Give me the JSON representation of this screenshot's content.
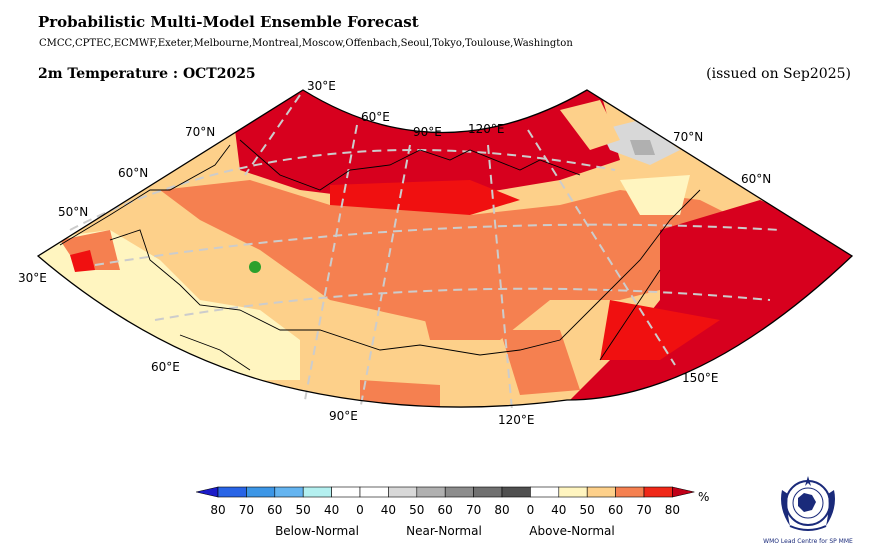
{
  "header": {
    "title": "Probabilistic Multi-Model Ensemble Forecast",
    "models": "CMCC,CPTEC,ECMWF,Exeter,Melbourne,Montreal,Moscow,Offenbach,Seoul,Tokyo,Toulouse,Washington",
    "variable": "2m Temperature : OCT2025",
    "issued": "(issued on Sep2025)"
  },
  "map": {
    "region": "Northern Asia",
    "projection": "conic",
    "labels": {
      "lon_30": "30°E",
      "lon_60_top": "60°E",
      "lon_90_top": "90°E",
      "lon_120_top": "120°E",
      "lat_70_left": "70°N",
      "lat_60_left": "60°N",
      "lat_50_left": "50°N",
      "lat_30_left": "30°E",
      "lat_70_right": "70°N",
      "lat_60_right": "60°N",
      "lon_60_bottom": "60°E",
      "lon_90_bottom": "90°E",
      "lon_120_bottom": "120°E",
      "lon_150_bottom": "150°E"
    }
  },
  "legend": {
    "ticks": [
      "80",
      "70",
      "60",
      "50",
      "40",
      "0",
      "40",
      "50",
      "60",
      "70",
      "80",
      "0",
      "40",
      "50",
      "60",
      "70",
      "80"
    ],
    "categories": {
      "below": "Below-Normal",
      "near": "Near-Normal",
      "above": "Above-Normal"
    },
    "unit": "%",
    "colors": {
      "below": [
        "#1b1bc8",
        "#2864e6",
        "#3c96e6",
        "#64b4f0",
        "#b4f0f0"
      ],
      "near": [
        "#ffffff",
        "#ffffff",
        "#d8d8d8",
        "#b0b0b0",
        "#8c8c8c",
        "#707070",
        "#505050"
      ],
      "above": [
        "#ffffff",
        "#fff5c0",
        "#fdd08a",
        "#f58050",
        "#f02818",
        "#c00018"
      ]
    }
  },
  "logo": {
    "text": "WMO Lead Centre for SP MME"
  }
}
